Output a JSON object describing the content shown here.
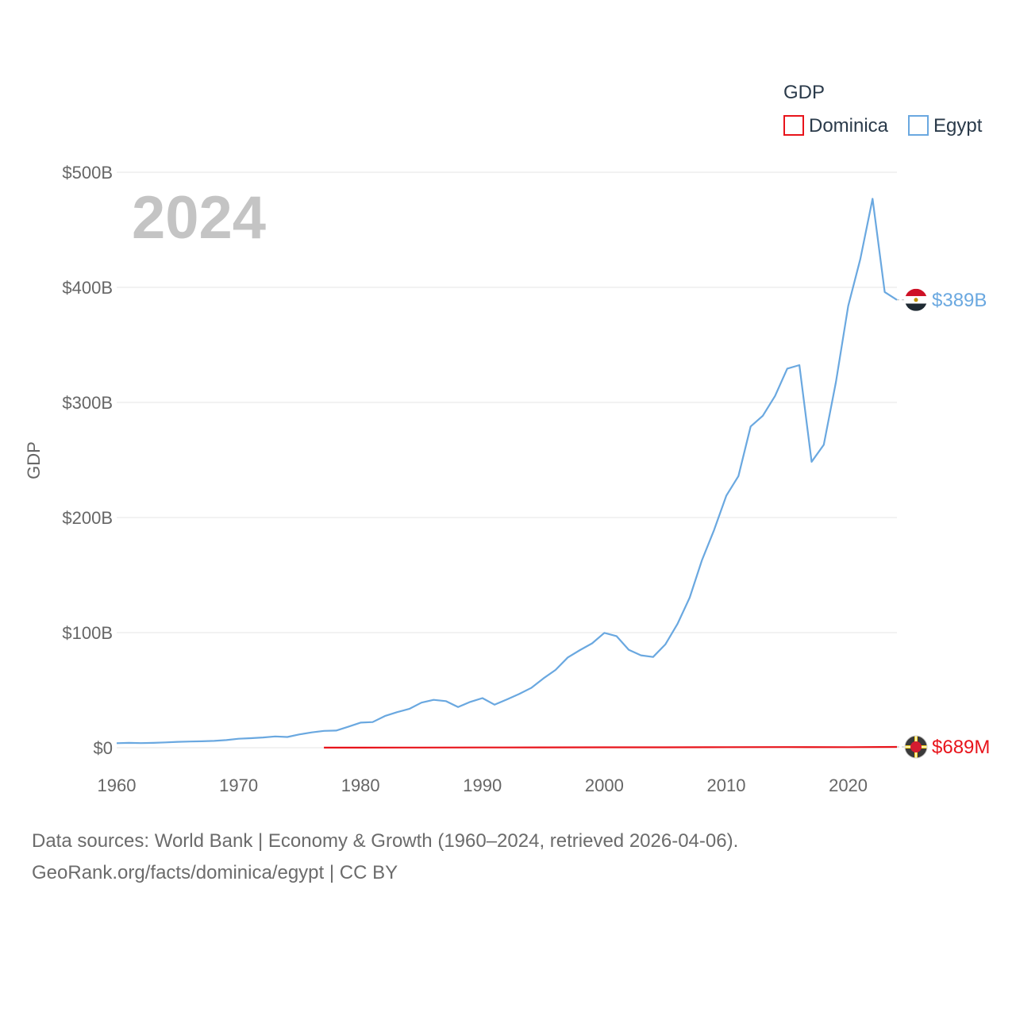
{
  "chart_data": {
    "type": "line",
    "legend_title": "GDP",
    "ylabel": "GDP",
    "year_label": "2024",
    "xlim": [
      1960,
      2024
    ],
    "ylim": [
      0,
      500
    ],
    "y_unit": "billions USD",
    "x_ticks": [
      "1960",
      "1970",
      "1980",
      "1990",
      "2000",
      "2010",
      "2020"
    ],
    "y_ticks": [
      {
        "value": 0,
        "label": "$0"
      },
      {
        "value": 100,
        "label": "$100B"
      },
      {
        "value": 200,
        "label": "$200B"
      },
      {
        "value": 300,
        "label": "$300B"
      },
      {
        "value": 400,
        "label": "$400B"
      },
      {
        "value": 500,
        "label": "$500B"
      }
    ],
    "series": [
      {
        "name": "Dominica",
        "color": "#e8141b",
        "end_label": "$689M",
        "x": [
          1977,
          1980,
          1985,
          1990,
          1995,
          2000,
          2005,
          2010,
          2015,
          2020,
          2024
        ],
        "values": [
          0.05,
          0.06,
          0.11,
          0.19,
          0.25,
          0.33,
          0.36,
          0.49,
          0.54,
          0.5,
          0.69
        ]
      },
      {
        "name": "Egypt",
        "color": "#6aa8e0",
        "end_label": "$389B",
        "x": [
          1960,
          1961,
          1962,
          1963,
          1964,
          1965,
          1966,
          1967,
          1968,
          1969,
          1970,
          1971,
          1972,
          1973,
          1974,
          1975,
          1976,
          1977,
          1978,
          1979,
          1980,
          1981,
          1982,
          1983,
          1984,
          1985,
          1986,
          1987,
          1988,
          1989,
          1990,
          1991,
          1992,
          1993,
          1994,
          1995,
          1996,
          1997,
          1998,
          1999,
          2000,
          2001,
          2002,
          2003,
          2004,
          2005,
          2006,
          2007,
          2008,
          2009,
          2010,
          2011,
          2012,
          2013,
          2014,
          2015,
          2016,
          2017,
          2018,
          2019,
          2020,
          2021,
          2022,
          2023,
          2024
        ],
        "values": [
          3.9,
          4.2,
          4.0,
          4.2,
          4.6,
          5.1,
          5.4,
          5.6,
          5.9,
          6.6,
          7.8,
          8.3,
          8.9,
          9.8,
          9.3,
          11.6,
          13.3,
          14.6,
          14.9,
          18.2,
          21.8,
          22.3,
          27.5,
          30.9,
          33.7,
          39.2,
          41.6,
          40.5,
          35.3,
          39.8,
          43.1,
          37.4,
          41.9,
          46.6,
          51.9,
          60.2,
          67.6,
          78.4,
          84.8,
          90.7,
          99.8,
          97.0,
          85.1,
          80.3,
          78.8,
          89.7,
          107.5,
          130.4,
          162.8,
          189.1,
          218.9,
          236.0,
          279.1,
          288.4,
          305.6,
          329.4,
          332.4,
          248.4,
          263.2,
          317.9,
          383.8,
          424.7,
          477.0,
          395.9,
          389.1
        ]
      }
    ]
  },
  "footer": {
    "line1": "Data sources: World Bank | Economy & Growth (1960–2024, retrieved 2026-04-06).",
    "line2": "GeoRank.org/facts/dominica/egypt | CC BY"
  }
}
